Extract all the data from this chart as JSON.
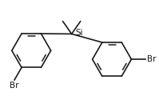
{
  "bg_color": "#ffffff",
  "line_color": "#1a1a1a",
  "line_width": 1.2,
  "font_size": 7.5,
  "Si_label": "Si",
  "Br_label": "Br"
}
